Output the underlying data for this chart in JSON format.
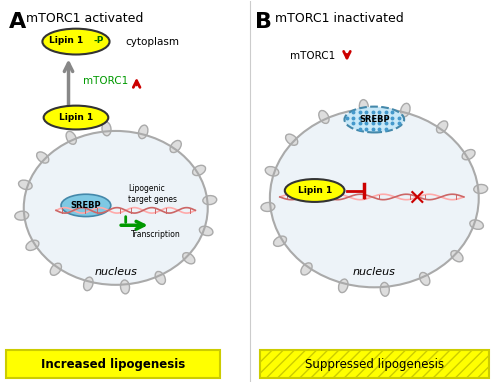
{
  "fig_width": 5.0,
  "fig_height": 3.83,
  "bg_color": "#ffffff",
  "panel_A": {
    "title": "mTORC1 activated",
    "label": "A",
    "lipin1p_text": "Lipin 1",
    "lipin1p_suffix": "-P",
    "cytoplasm_text": "cytoplasm",
    "mtorc1_text": "mTORC1",
    "lipin1_text": "Lipin 1",
    "srebp_text": "SREBP",
    "lipogenic_text": "Lipogenic\ntarget genes",
    "transcription_text": "Transcription",
    "nucleus_text": "nucleus",
    "bottom_text": "Increased lipogenesis",
    "bottom_bg": "#ffff00",
    "yellow": "#ffff00",
    "green": "#00aa00",
    "red": "#dd0000",
    "gray": "#888888",
    "blue_ellipse": "#7ec8e3",
    "cell_fill": "#e8f0f8",
    "cell_edge": "#aaaaaa"
  },
  "panel_B": {
    "title": "mTORC1 inactivated",
    "label": "B",
    "mtorc1_text": "mTORC1",
    "srebp_text": "SREBP",
    "lipin1_text": "Lipin 1",
    "nucleus_text": "nucleus",
    "bottom_text": "Suppressed lipogenesis",
    "yellow": "#ffff00",
    "red": "#dd0000",
    "gray": "#888888",
    "blue_ellipse": "#7ec8e3",
    "cell_fill": "#e8f0f8",
    "cell_edge": "#aaaaaa"
  }
}
